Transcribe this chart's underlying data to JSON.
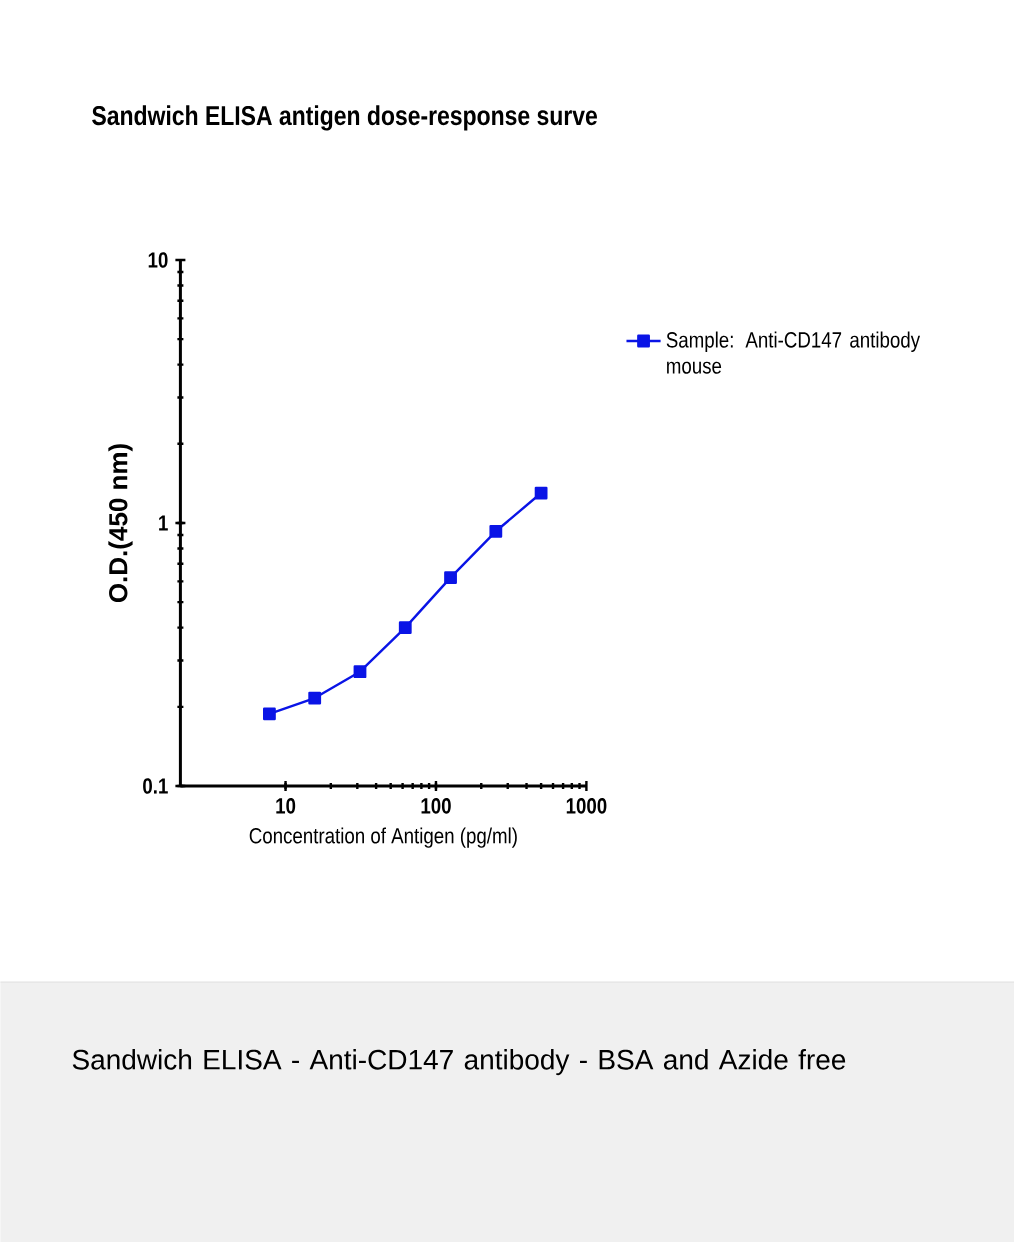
{
  "chart_data": {
    "type": "line",
    "title": "Sandwich ELISA antigen dose-response surve",
    "xlabel": "Concentration of Antigen (pg/ml)",
    "ylabel": "O.D.(450 nm)",
    "x": [
      7.8125,
      15.625,
      31.25,
      62.5,
      125,
      250,
      500
    ],
    "series": [
      {
        "name": "Sample: Anti-CD147 antibody mouse",
        "color": "#0a14e6",
        "values": [
          0.188,
          0.216,
          0.272,
          0.4,
          0.62,
          0.93,
          1.3
        ]
      }
    ],
    "log": "xy",
    "xlim": [
      2,
      1000
    ],
    "ylim": [
      0.1,
      10
    ],
    "xticks": [
      10,
      100,
      1000
    ],
    "yticks": [
      0.1,
      1,
      10
    ],
    "marker": "square",
    "line_style": "solid",
    "legend": "right",
    "grid": false,
    "annotations": [
      "Sandwich ELISA - Anti-CD147 antibody - BSA and Azide free"
    ]
  }
}
